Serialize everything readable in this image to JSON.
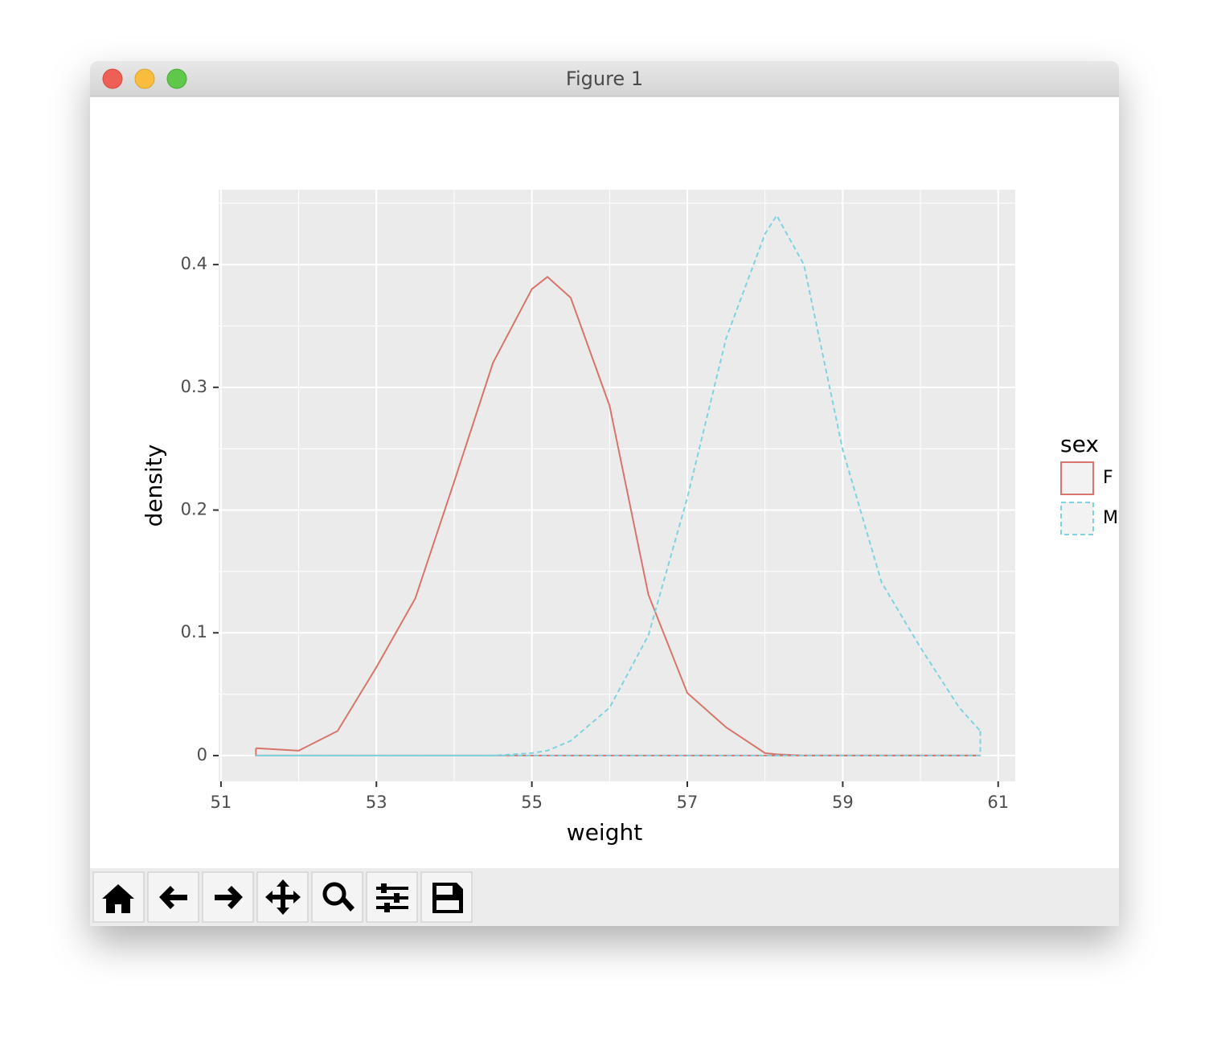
{
  "window": {
    "title": "Figure 1"
  },
  "chart_data": {
    "type": "density",
    "xlabel": "weight",
    "ylabel": "density",
    "x": [
      51.45,
      52,
      52.5,
      53,
      53.5,
      54,
      54.5,
      55,
      55.2,
      55.5,
      56,
      56.5,
      57,
      57.5,
      58,
      58.15,
      58.5,
      59,
      59.5,
      60,
      60.5,
      60.77
    ],
    "series": [
      {
        "name": "F",
        "color": "#d8756b",
        "linestyle": "solid",
        "values": [
          0.006,
          0.004,
          0.02,
          0.072,
          0.128,
          0.223,
          0.32,
          0.38,
          0.39,
          0.373,
          0.285,
          0.131,
          0.051,
          0.023,
          0.002,
          0.001,
          0,
          0,
          0,
          0,
          0,
          0
        ]
      },
      {
        "name": "M",
        "color": "#7fd3e0",
        "linestyle": "dashed",
        "values": [
          0,
          0,
          0,
          0,
          0,
          0,
          0,
          0.002,
          0.004,
          0.012,
          0.039,
          0.098,
          0.21,
          0.34,
          0.425,
          0.44,
          0.4,
          0.249,
          0.141,
          0.088,
          0.039,
          0.02
        ]
      }
    ],
    "xlim": [
      50.97,
      61.22
    ],
    "ylim": [
      -0.021,
      0.461
    ],
    "xticks": [
      51,
      53,
      55,
      57,
      59,
      61
    ],
    "yticks": [
      0,
      0.1,
      0.2,
      0.3,
      0.4
    ],
    "xminor": [
      52,
      54,
      56,
      58,
      60
    ],
    "yminor": [
      0.05,
      0.15,
      0.25,
      0.35,
      0.45
    ],
    "grid": true,
    "legend": {
      "title": "sex",
      "position": "right"
    }
  }
}
